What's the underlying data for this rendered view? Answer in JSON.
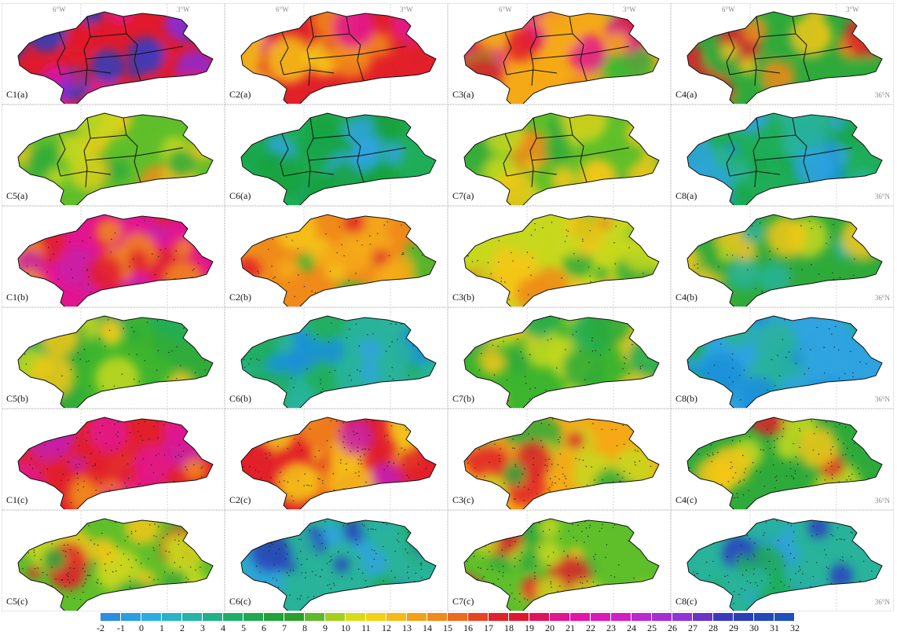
{
  "panels": [
    {
      "label": "C1(a)",
      "palette": [
        "#e01a2c",
        "#e3148f",
        "#8b2ad8",
        "#2a3fc0"
      ],
      "base": "#e01a2c",
      "borders": true,
      "lon_labels": [
        "6°W",
        "3°W"
      ],
      "lat_label": ""
    },
    {
      "label": "C2(a)",
      "palette": [
        "#e2202a",
        "#f08a1a",
        "#e3148f",
        "#f5c715"
      ],
      "base": "#e2202a",
      "borders": true,
      "lon_labels": [
        "6°W",
        "3°W"
      ],
      "lat_label": ""
    },
    {
      "label": "C3(a)",
      "palette": [
        "#f5a916",
        "#e2202a",
        "#e3148f",
        "#3dbb2e"
      ],
      "base": "#f5a916",
      "borders": true,
      "lon_labels": [
        "6°W",
        "3°W"
      ],
      "lat_label": ""
    },
    {
      "label": "C4(a)",
      "palette": [
        "#2eaa3b",
        "#f5c715",
        "#e2202a",
        "#f08a1a"
      ],
      "base": "#2eaa3b",
      "borders": true,
      "lon_labels": [
        "6°W",
        "3°W"
      ],
      "lat_label": "36°N"
    },
    {
      "label": "C5(a)",
      "palette": [
        "#2eaa3b",
        "#c7d81c",
        "#f5c715",
        "#f08a1a"
      ],
      "base": "#5fbf2a",
      "borders": true,
      "lon_labels": [],
      "lat_label": ""
    },
    {
      "label": "C6(a)",
      "palette": [
        "#18a64a",
        "#2ea3e0",
        "#28b39a",
        "#19a23c"
      ],
      "base": "#1fae58",
      "borders": true,
      "lon_labels": [],
      "lat_label": ""
    },
    {
      "label": "C7(a)",
      "palette": [
        "#2eaa3b",
        "#c7d81c",
        "#f5c715",
        "#f08a1a"
      ],
      "base": "#5fbf2a",
      "borders": true,
      "lon_labels": [],
      "lat_label": ""
    },
    {
      "label": "C8(a)",
      "palette": [
        "#18a64a",
        "#2ea3e0",
        "#28b39a",
        "#1a8fd8"
      ],
      "base": "#1fae58",
      "borders": true,
      "lon_labels": [],
      "lat_label": "36°N"
    },
    {
      "label": "C1(b)",
      "palette": [
        "#e3148f",
        "#e2202a",
        "#f08a1a",
        "#c81ea8"
      ],
      "base": "#e3148f",
      "borders": false,
      "lon_labels": [],
      "lat_label": ""
    },
    {
      "label": "C2(b)",
      "palette": [
        "#f5a916",
        "#e2202a",
        "#f5c715",
        "#3dbb2e"
      ],
      "base": "#f08a1a",
      "borders": false,
      "lon_labels": [],
      "lat_label": ""
    },
    {
      "label": "C3(b)",
      "palette": [
        "#f5c715",
        "#2eaa3b",
        "#f08a1a",
        "#c7d81c"
      ],
      "base": "#c7d81c",
      "borders": false,
      "lon_labels": [],
      "lat_label": ""
    },
    {
      "label": "C4(b)",
      "palette": [
        "#2eaa3b",
        "#c7d81c",
        "#f5c715",
        "#28b39a"
      ],
      "base": "#2eaa3b",
      "borders": false,
      "lon_labels": [],
      "lat_label": "36°N"
    },
    {
      "label": "C5(b)",
      "palette": [
        "#2eaa3b",
        "#c7d81c",
        "#f5c715",
        "#1fae58"
      ],
      "base": "#3db52e",
      "borders": false,
      "lon_labels": [],
      "lat_label": ""
    },
    {
      "label": "C6(b)",
      "palette": [
        "#2ea3e0",
        "#1fae58",
        "#28b39a",
        "#1a8fd8"
      ],
      "base": "#28b39a",
      "borders": false,
      "lon_labels": [],
      "lat_label": ""
    },
    {
      "label": "C7(b)",
      "palette": [
        "#2eaa3b",
        "#c7d81c",
        "#f5c715",
        "#1fae58"
      ],
      "base": "#3db52e",
      "borders": false,
      "lon_labels": [],
      "lat_label": ""
    },
    {
      "label": "C8(b)",
      "palette": [
        "#2ea3e0",
        "#1fae58",
        "#28b39a",
        "#1a8fd8"
      ],
      "base": "#2ea3e0",
      "borders": false,
      "lon_labels": [],
      "lat_label": "36°N"
    },
    {
      "label": "C1(c)",
      "palette": [
        "#e2202a",
        "#e3148f",
        "#c81ea8",
        "#f08a1a"
      ],
      "base": "#e2202a",
      "borders": false,
      "lon_labels": [],
      "lat_label": ""
    },
    {
      "label": "C2(c)",
      "palette": [
        "#e2202a",
        "#f08a1a",
        "#f5c715",
        "#c81ea8"
      ],
      "base": "#e2202a",
      "borders": false,
      "lon_labels": [],
      "lat_label": ""
    },
    {
      "label": "C3(c)",
      "palette": [
        "#f5a916",
        "#2eaa3b",
        "#e2202a",
        "#c7d81c"
      ],
      "base": "#f5a916",
      "borders": false,
      "lon_labels": [],
      "lat_label": ""
    },
    {
      "label": "C4(c)",
      "palette": [
        "#2eaa3b",
        "#f5c715",
        "#e2202a",
        "#c7d81c"
      ],
      "base": "#2eaa3b",
      "borders": false,
      "lon_labels": [],
      "lat_label": "36°N"
    },
    {
      "label": "C5(c)",
      "palette": [
        "#2eaa3b",
        "#f5c715",
        "#c7d81c",
        "#e2202a"
      ],
      "base": "#5fbf2a",
      "borders": false,
      "lon_labels": [],
      "lat_label": ""
    },
    {
      "label": "C6(c)",
      "palette": [
        "#1fae58",
        "#2ea3e0",
        "#28b39a",
        "#2a3fc0"
      ],
      "base": "#28b39a",
      "borders": false,
      "lon_labels": [],
      "lat_label": ""
    },
    {
      "label": "C7(c)",
      "palette": [
        "#2eaa3b",
        "#f5c715",
        "#c7d81c",
        "#e2202a"
      ],
      "base": "#5fbf2a",
      "borders": false,
      "lon_labels": [],
      "lat_label": ""
    },
    {
      "label": "C8(c)",
      "palette": [
        "#1fae58",
        "#2ea3e0",
        "#28b39a",
        "#2a3fc0"
      ],
      "base": "#28b39a",
      "borders": false,
      "lon_labels": [],
      "lat_label": "36°N"
    }
  ],
  "legend": {
    "ticks": [
      "-2",
      "-1",
      "0",
      "1",
      "2",
      "3",
      "4",
      "5",
      "6",
      "7",
      "8",
      "9",
      "10",
      "11",
      "12",
      "13",
      "14",
      "15",
      "16",
      "17",
      "18",
      "19",
      "20",
      "21",
      "22",
      "23",
      "24",
      "25",
      "26",
      "27",
      "28",
      "29",
      "30",
      "31",
      "32"
    ],
    "colors": [
      "#2a8fe0",
      "#2a9ee0",
      "#2aaee0",
      "#28b3c8",
      "#26b3a8",
      "#22b08a",
      "#1fae6a",
      "#1fa850",
      "#1fa23a",
      "#2aa02a",
      "#5fb82a",
      "#a4cf1e",
      "#d6dc18",
      "#f5d015",
      "#f5b816",
      "#f3a016",
      "#f08a1a",
      "#ee6a1e",
      "#e84422",
      "#e2202a",
      "#e0182e",
      "#e0145a",
      "#e3148f",
      "#e414a8",
      "#dc18b8",
      "#cf1ec4",
      "#bb28cf",
      "#a52ed5",
      "#8e34d8",
      "#6a34c8",
      "#3a3ac0",
      "#2a40b8",
      "#2448b8",
      "#1f50bc"
    ]
  }
}
